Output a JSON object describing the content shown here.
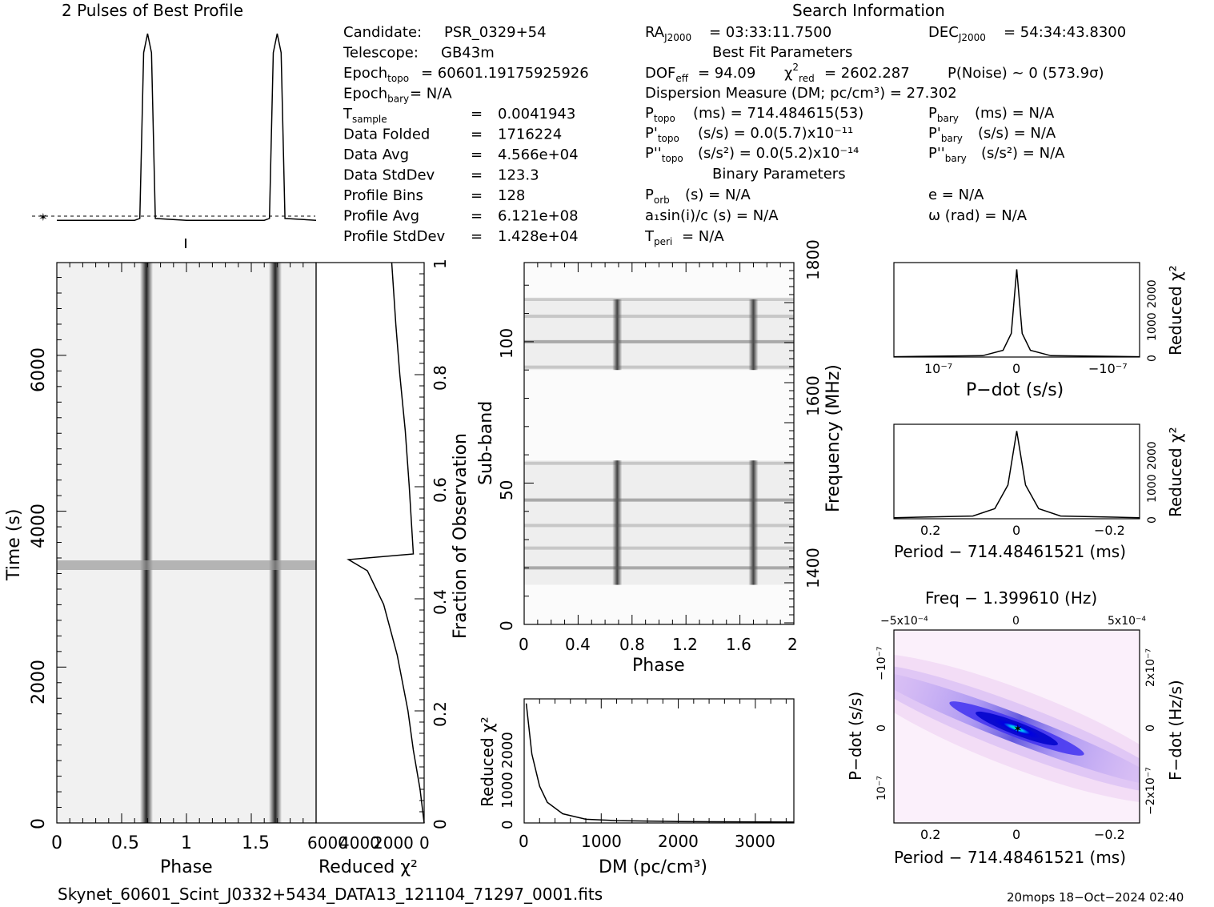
{
  "header": {
    "profile_title": "2 Pulses of Best Profile",
    "search_title": "Search Information",
    "best_fit_title": "Best Fit Parameters",
    "binary_title": "Binary Parameters"
  },
  "info_left": [
    {
      "label": "Candidate:",
      "value": "PSR_0329+54"
    },
    {
      "label": "Telescope:",
      "value": "GB43m"
    },
    {
      "label": "Epoch_topo",
      "value": "= 60601.19175925926"
    },
    {
      "label": "Epoch_bary",
      "value": "= N/A"
    },
    {
      "label": "T_sample",
      "value": "0.0041943"
    },
    {
      "label": "Data Folded",
      "value": "1716224"
    },
    {
      "label": "Data Avg",
      "value": "4.566e+04"
    },
    {
      "label": "Data StdDev",
      "value": "123.3"
    },
    {
      "label": "Profile Bins",
      "value": "128"
    },
    {
      "label": "Profile Avg",
      "value": "6.121e+08"
    },
    {
      "label": "Profile StdDev",
      "value": "1.428e+04"
    }
  ],
  "info_right": {
    "ra": "= 03:33:11.7500",
    "dec": "= 54:34:43.8300",
    "dof": "= 94.09",
    "chi2": "= 2602.287",
    "pnoise": "P(Noise) ~ 0    (573.9σ)",
    "dm": "Dispersion Measure (DM; pc/cm³) = 27.302",
    "ptopo": "(ms) =  714.484615(53)",
    "pbary": "(ms) = N/A",
    "pdtopo": "(s/s) = 0.0(5.7)x10⁻¹¹",
    "pdbary": "(s/s) = N/A",
    "pddtopo": "(s/s²) = 0.0(5.2)x10⁻¹⁴",
    "pddbary": "(s/s²) = N/A",
    "porb": "(s) = N/A",
    "e": "e = N/A",
    "a1": "a₁sin(i)/c (s) = N/A",
    "omega": "ω (rad) = N/A",
    "tperi": "= N/A"
  },
  "labels": {
    "phase": "Phase",
    "time": "Time (s)",
    "redchi": "Reduced χ²",
    "fraction": "Fraction of Observation",
    "subband": "Sub-band",
    "frequency": "Frequency (MHz)",
    "dm": "DM (pc/cm³)",
    "pdot": "P−dot (s/s)",
    "period": "Period − 714.48461521 (ms)",
    "freq": "Freq − 1.399610 (Hz)",
    "fdot": "F−dot (Hz/s)"
  },
  "footer": {
    "filename": "Skynet_60601_Scint_J0332+5434_DATA13_121104_71297_0001.fits",
    "stamp": "20mops 18−Oct−2024 02:40"
  },
  "chart_data": [
    {
      "type": "line",
      "title": "2 Pulses of Best Profile",
      "x": [
        0,
        0.6,
        0.64,
        0.67,
        0.7,
        0.73,
        0.76,
        1.0,
        1.6,
        1.64,
        1.67,
        1.7,
        1.73,
        1.76,
        2.0
      ],
      "y": [
        0.02,
        0.02,
        0.03,
        0.9,
        1.0,
        0.9,
        0.03,
        0.02,
        0.02,
        0.03,
        0.9,
        1.0,
        0.9,
        0.03,
        0.02
      ]
    },
    {
      "type": "heatmap",
      "xlabel": "Phase",
      "ylabel": "Time (s)",
      "xlim": [
        0,
        2
      ],
      "ylim": [
        0,
        7200
      ],
      "pulse_phases": [
        0.7,
        1.7
      ],
      "bright_row_time": 3300
    },
    {
      "type": "line",
      "xlabel": "Reduced χ²",
      "ylabel": "Fraction of Observation",
      "xlim": [
        8000,
        0
      ],
      "ylim": [
        0,
        1
      ],
      "points": [
        [
          0,
          0
        ],
        [
          300,
          0.06
        ],
        [
          800,
          0.13
        ],
        [
          1200,
          0.2
        ],
        [
          2000,
          0.3
        ],
        [
          3000,
          0.39
        ],
        [
          4200,
          0.45
        ],
        [
          5600,
          0.47
        ],
        [
          800,
          0.48
        ],
        [
          1100,
          0.6
        ],
        [
          1400,
          0.7
        ],
        [
          1800,
          0.8
        ],
        [
          2100,
          0.89
        ],
        [
          2400,
          1.0
        ]
      ]
    },
    {
      "type": "heatmap",
      "xlabel": "Phase",
      "ylabel": "Sub-band",
      "y2label": "Frequency (MHz)",
      "xlim": [
        0,
        2
      ],
      "ylim": [
        0,
        128
      ],
      "pulse_phases": [
        0.69,
        1.7
      ],
      "occupied_bands": [
        [
          14,
          58
        ],
        [
          90,
          115
        ]
      ]
    },
    {
      "type": "line",
      "xlabel": "DM (pc/cm³)",
      "ylabel": "Reduced χ²",
      "xlim": [
        0,
        3500
      ],
      "ylim": [
        0,
        2700
      ],
      "points": [
        [
          27,
          2600
        ],
        [
          100,
          1500
        ],
        [
          200,
          800
        ],
        [
          300,
          450
        ],
        [
          500,
          200
        ],
        [
          800,
          80
        ],
        [
          1200,
          50
        ],
        [
          2000,
          30
        ],
        [
          3500,
          20
        ]
      ]
    },
    {
      "type": "line",
      "xlabel": "P−dot (s/s)",
      "ylabel": "Reduced χ²",
      "xlim": [
        -1.8e-07,
        1.8e-07
      ],
      "ylim": [
        0,
        2800
      ],
      "points": [
        [
          -1.8e-07,
          10
        ],
        [
          -5e-08,
          40
        ],
        [
          -2e-08,
          200
        ],
        [
          -8e-09,
          700
        ],
        [
          0,
          2600
        ],
        [
          8e-09,
          700
        ],
        [
          2e-08,
          200
        ],
        [
          5e-08,
          40
        ],
        [
          1.8e-07,
          10
        ]
      ]
    },
    {
      "type": "line",
      "xlabel": "Period − 714.48461521 (ms)",
      "ylabel": "Reduced χ²",
      "xlim": [
        0.28,
        -0.28
      ],
      "ylim": [
        0,
        2800
      ],
      "points": [
        [
          0.28,
          30
        ],
        [
          0.1,
          80
        ],
        [
          0.05,
          300
        ],
        [
          0.02,
          1000
        ],
        [
          0,
          2600
        ],
        [
          -0.02,
          1000
        ],
        [
          -0.05,
          300
        ],
        [
          -0.1,
          80
        ],
        [
          -0.28,
          30
        ]
      ]
    },
    {
      "type": "heatmap",
      "xlabel": "Period − 714.48461521 (ms)",
      "ylabel": "P−dot (s/s)",
      "x2label": "Freq − 1.399610 (Hz)",
      "y2label": "F−dot (Hz/s)",
      "xlim": [
        0.28,
        -0.28
      ],
      "ylim": [
        -1.7e-07,
        1.7e-07
      ],
      "peak": [
        0,
        0
      ]
    }
  ]
}
